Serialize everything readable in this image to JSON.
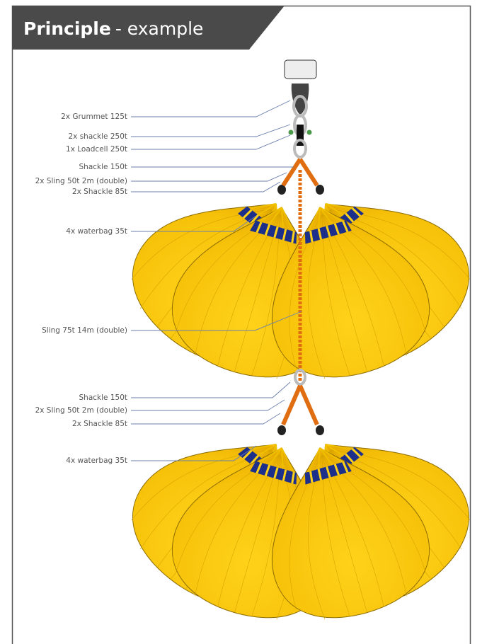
{
  "header": {
    "title": "Principle",
    "subtitle": "- example"
  },
  "labels": [
    {
      "text": "2x Grummet 125t"
    },
    {
      "text": "2x shackle 250t"
    },
    {
      "text": "1x Loadcell 250t"
    },
    {
      "text": "Shackle 150t"
    },
    {
      "text": "2x Sling 50t 2m (double)"
    },
    {
      "text": "2x Shackle 85t"
    },
    {
      "text": "4x waterbag 35t"
    },
    {
      "text": "Sling 75t 14m (double)"
    },
    {
      "text": "Shackle 150t"
    },
    {
      "text": "2x Sling 50t 2m (double)"
    },
    {
      "text": "2x Shackle 85t"
    },
    {
      "text": "4x waterbag 35t"
    }
  ]
}
